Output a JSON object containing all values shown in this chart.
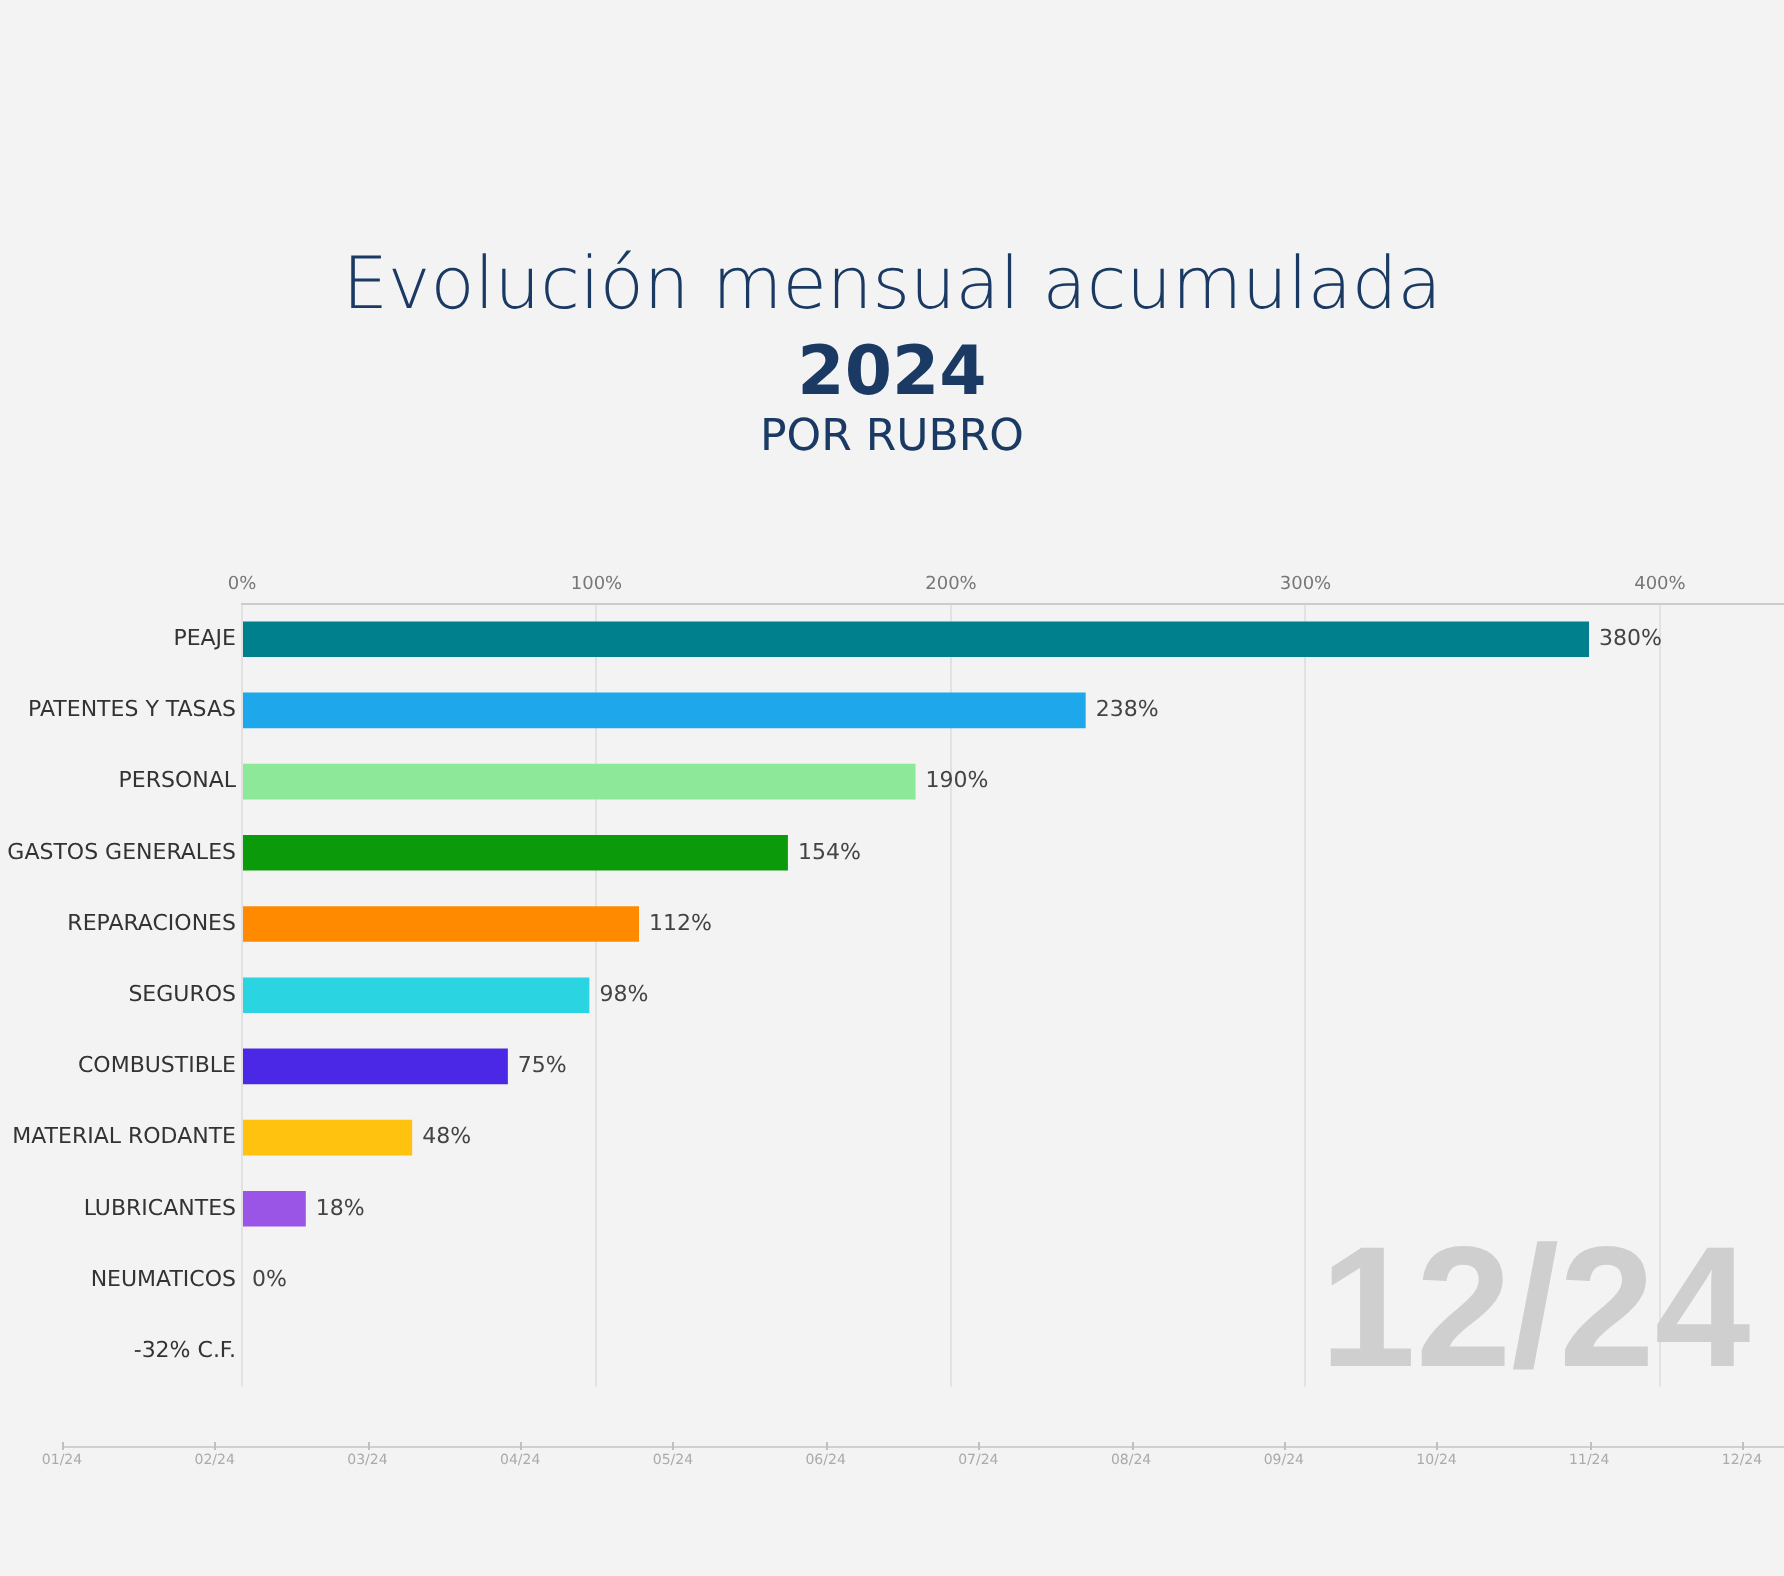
{
  "chart_data": {
    "type": "bar",
    "orientation": "horizontal",
    "title": "Evolución mensual acumulada",
    "subtitle": "2024",
    "categories": [
      "PEAJE",
      "PATENTES Y TASAS",
      "PERSONAL",
      "GASTOS GENERALES",
      "REPARACIONES",
      "SEGUROS",
      "COMBUSTIBLE",
      "MATERIAL RODANTE",
      "LUBRICANTES",
      "NEUMATICOS",
      "-32% C.F."
    ],
    "values": [
      380,
      238,
      190,
      154,
      112,
      98,
      75,
      48,
      18,
      0,
      null
    ],
    "colors": [
      "#007f8c",
      "#1ea7ea",
      "#8de89a",
      "#0a9a0a",
      "#ff8a00",
      "#2ad4e0",
      "#4a28e6",
      "#ffc20e",
      "#9a55e6",
      "#888888",
      "#888888"
    ],
    "value_labels": [
      "380%",
      "238%",
      "190%",
      "154%",
      "112%",
      "98%",
      "75%",
      "48%",
      "18%",
      "0%",
      null
    ],
    "xlim": [
      0,
      435
    ],
    "xticks": [
      {
        "value": 0,
        "label": "0%"
      },
      {
        "value": 100,
        "label": "100%"
      },
      {
        "value": 200,
        "label": "200%"
      },
      {
        "value": 300,
        "label": "300%"
      },
      {
        "value": 400,
        "label": "400%"
      }
    ],
    "grid": "x",
    "legend": false,
    "annotations": [
      "POR RUBRO",
      "12/24",
      "01/24",
      "02/24",
      "03/24",
      "04/24",
      "05/24",
      "06/24",
      "07/24",
      "08/24",
      "09/24",
      "10/24",
      "11/24",
      "12/24"
    ]
  }
}
